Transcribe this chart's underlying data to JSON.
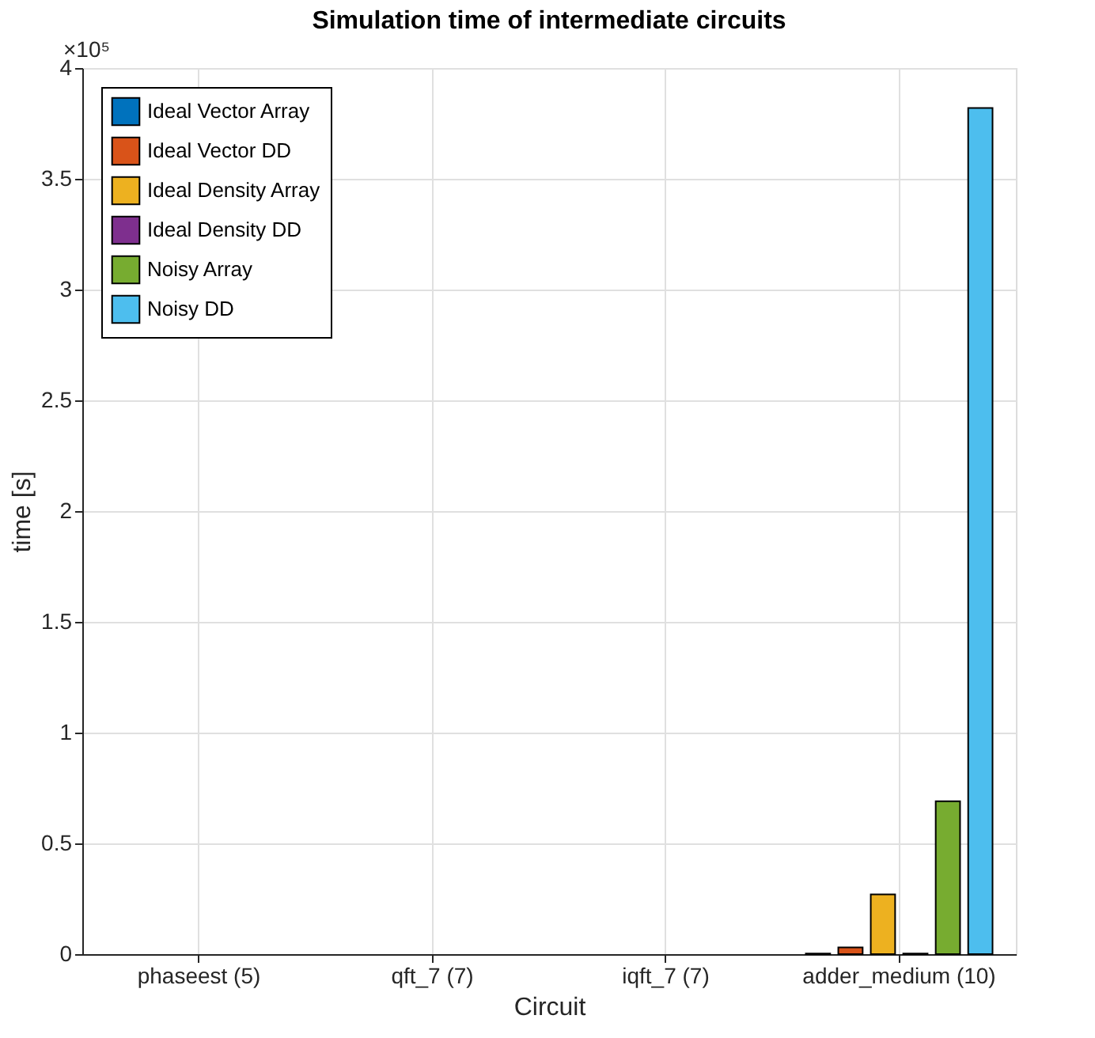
{
  "chart_data": {
    "type": "bar",
    "title": "Simulation time of intermediate circuits",
    "xlabel": "Circuit",
    "ylabel": "time [s]",
    "categories": [
      "phaseest (5)",
      "qft_7 (7)",
      "iqft_7 (7)",
      "adder_medium (10)"
    ],
    "series": [
      {
        "name": "Ideal Vector Array",
        "color": "#0072bd",
        "values": [
          null,
          null,
          null,
          0.003
        ]
      },
      {
        "name": "Ideal Vector DD",
        "color": "#d95319",
        "values": [
          null,
          null,
          null,
          0.03
        ]
      },
      {
        "name": "Ideal Density Array",
        "color": "#edb120",
        "values": [
          null,
          null,
          null,
          0.27
        ]
      },
      {
        "name": "Ideal Density DD",
        "color": "#7e2f8e",
        "values": [
          null,
          null,
          null,
          0.003
        ]
      },
      {
        "name": "Noisy Array",
        "color": "#77ac30",
        "values": [
          null,
          null,
          null,
          0.69
        ]
      },
      {
        "name": "Noisy DD",
        "color": "#4dbeee",
        "values": [
          null,
          null,
          null,
          3.82
        ]
      }
    ],
    "ylim": [
      0,
      4
    ],
    "yticks": [
      0,
      0.5,
      1,
      1.5,
      2,
      2.5,
      3,
      3.5,
      4
    ],
    "annotations": [
      "×10⁵"
    ],
    "grid": true,
    "legend": "top left"
  }
}
